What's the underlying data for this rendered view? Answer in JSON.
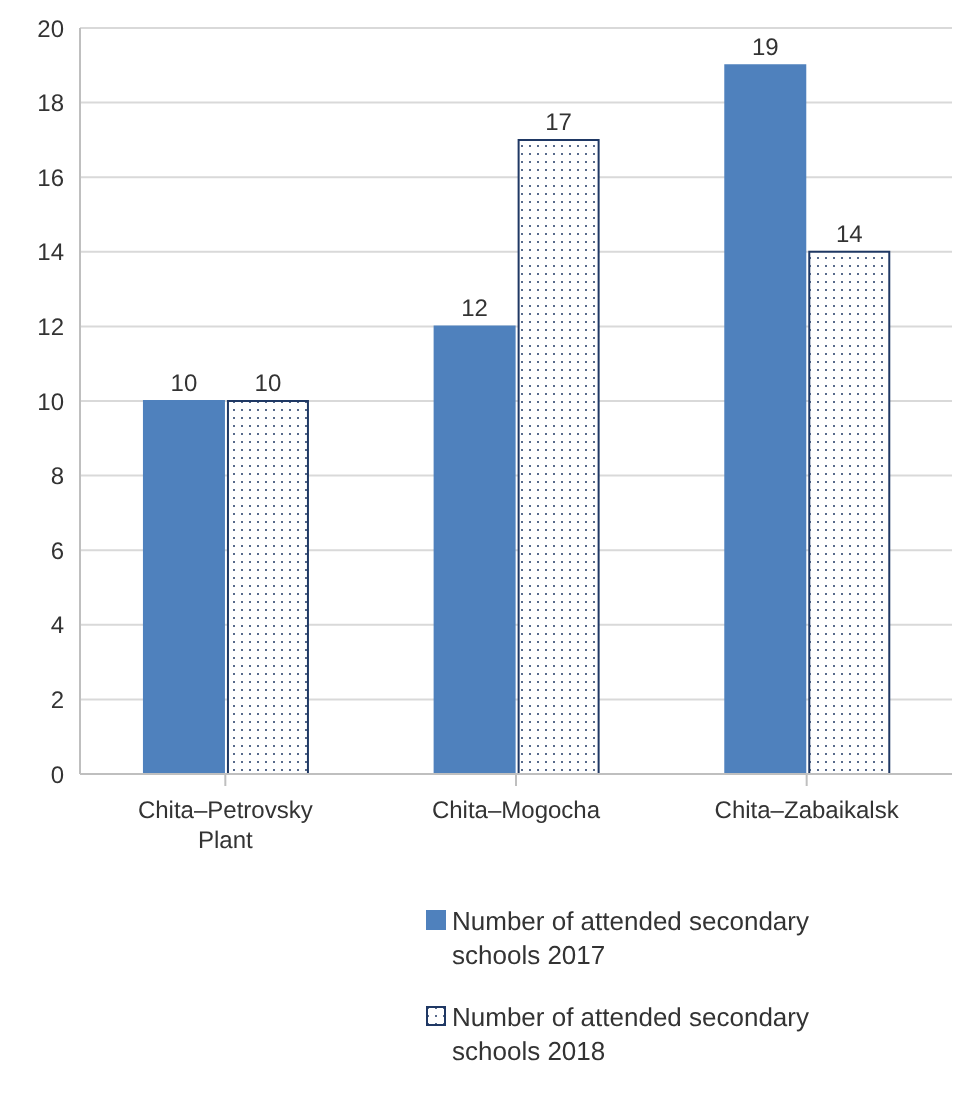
{
  "chart_data": {
    "type": "bar",
    "categories": [
      "Chita–Petrovsky Plant",
      "Chita–Mogocha",
      "Chita–Zabaikalsk"
    ],
    "series": [
      {
        "name": "Number of attended secondary schools 2017",
        "color": "#4f81bd",
        "values": [
          10,
          12,
          19
        ]
      },
      {
        "name": "Number of attended secondary schools 2018",
        "color": "#1f3864",
        "values": [
          10,
          17,
          14
        ]
      }
    ],
    "ylim": [
      0,
      20
    ],
    "yticks": [
      0,
      2,
      4,
      6,
      8,
      10,
      12,
      14,
      16,
      18,
      20
    ],
    "grid": "y",
    "legend": "bottom",
    "data_labels": true
  }
}
